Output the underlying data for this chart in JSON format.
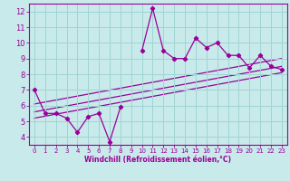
{
  "xlabel": "Windchill (Refroidissement éolien,°C)",
  "x_data": [
    0,
    1,
    2,
    3,
    4,
    5,
    6,
    7,
    8,
    9,
    10,
    11,
    12,
    13,
    14,
    15,
    16,
    17,
    18,
    19,
    20,
    21,
    22,
    23
  ],
  "y_main": [
    7.0,
    5.5,
    5.5,
    5.2,
    4.3,
    5.3,
    5.5,
    3.7,
    5.9,
    null,
    9.5,
    12.2,
    9.5,
    9.0,
    9.0,
    10.3,
    9.7,
    10.0,
    9.2,
    9.2,
    8.4,
    9.2,
    8.5,
    8.3
  ],
  "line_color": "#990099",
  "bg_color": "#c8eaea",
  "grid_color": "#a0d4d4",
  "ylim": [
    3.5,
    12.5
  ],
  "xlim": [
    -0.5,
    23.5
  ],
  "yticks": [
    4,
    5,
    6,
    7,
    8,
    9,
    10,
    11,
    12
  ],
  "xticks": [
    0,
    1,
    2,
    3,
    4,
    5,
    6,
    7,
    8,
    9,
    10,
    11,
    12,
    13,
    14,
    15,
    16,
    17,
    18,
    19,
    20,
    21,
    22,
    23
  ],
  "reg_lines": [
    {
      "x0": 0,
      "y0": 5.2,
      "x1": 23,
      "y1": 8.1
    },
    {
      "x0": 0,
      "y0": 5.6,
      "x1": 23,
      "y1": 8.5
    },
    {
      "x0": 0,
      "y0": 6.1,
      "x1": 23,
      "y1": 9.0
    }
  ]
}
